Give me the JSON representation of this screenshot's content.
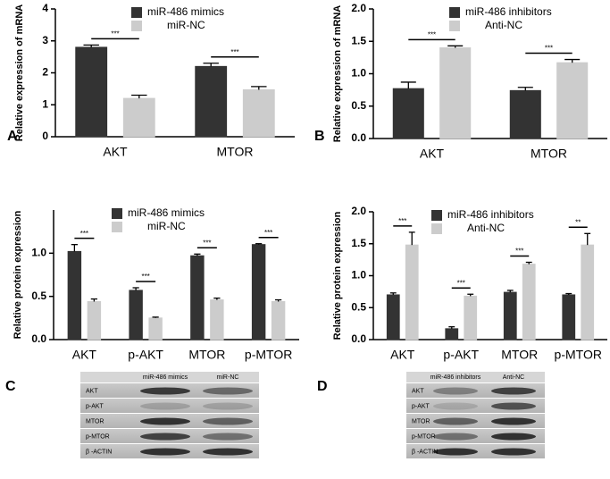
{
  "chart_data": [
    {
      "type": "bar",
      "panel_label": "A",
      "y_label": "Relative expression of mRNA",
      "categories": [
        "AKT",
        "MTOR"
      ],
      "series": [
        {
          "name": "miR-486 mimics",
          "color": "#333333",
          "values": [
            2.8,
            2.2
          ],
          "errors": [
            0.07,
            0.1
          ]
        },
        {
          "name": "miR-NC",
          "color": "#cccccc",
          "values": [
            1.2,
            1.47
          ],
          "errors": [
            0.1,
            0.1
          ]
        }
      ],
      "annotations": [
        "***",
        "***"
      ],
      "ylim": [
        0,
        4
      ],
      "yticks": [
        0,
        1,
        2,
        3,
        4
      ]
    },
    {
      "type": "bar",
      "panel_label": "B",
      "y_label": "Relative expression of mRNA",
      "categories": [
        "AKT",
        "MTOR"
      ],
      "series": [
        {
          "name": "miR-486 inhibitors",
          "color": "#333333",
          "values": [
            0.77,
            0.74
          ],
          "errors": [
            0.1,
            0.05
          ]
        },
        {
          "name": "Anti-NC",
          "color": "#cccccc",
          "values": [
            1.4,
            1.17
          ],
          "errors": [
            0.03,
            0.05
          ]
        }
      ],
      "annotations": [
        "***",
        "***"
      ],
      "ylim": [
        0,
        2
      ],
      "yticks": [
        {
          "value": 0,
          "label": "0.0"
        },
        0.5,
        {
          "value": 1,
          "label": "1.0"
        },
        1.5,
        {
          "value": 2,
          "label": "2.0"
        }
      ]
    },
    {
      "type": "bar",
      "y_label": "Relative protein expression",
      "categories": [
        "AKT",
        "p-AKT",
        "MTOR",
        "p-MTOR"
      ],
      "series": [
        {
          "name": "miR-486 mimics",
          "color": "#333333",
          "values": [
            1.02,
            0.57,
            0.97,
            1.1
          ],
          "errors": [
            0.08,
            0.03,
            0.02,
            0.01
          ]
        },
        {
          "name": "miR-NC",
          "color": "#cccccc",
          "values": [
            0.44,
            0.25,
            0.46,
            0.44
          ],
          "errors": [
            0.03,
            0.01,
            0.02,
            0.02
          ]
        }
      ],
      "annotations": [
        "***",
        "***",
        "***",
        "***"
      ],
      "ylim": [
        0,
        1.5
      ],
      "yticks": [
        {
          "value": 0,
          "label": "0.0"
        },
        0.5,
        {
          "value": 1,
          "label": "1.0"
        }
      ]
    },
    {
      "type": "bar",
      "y_label": "Relative protein expression",
      "categories": [
        "AKT",
        "p-AKT",
        "MTOR",
        "p-MTOR"
      ],
      "series": [
        {
          "name": "miR-486 inhibitors",
          "color": "#333333",
          "values": [
            0.7,
            0.17,
            0.74,
            0.7
          ],
          "errors": [
            0.03,
            0.03,
            0.03,
            0.02
          ]
        },
        {
          "name": "Anti-NC",
          "color": "#cccccc",
          "values": [
            1.48,
            0.68,
            1.18,
            1.48
          ],
          "errors": [
            0.2,
            0.03,
            0.03,
            0.18
          ]
        }
      ],
      "annotations": [
        "***",
        "***",
        "***",
        "**"
      ],
      "ylim": [
        0,
        2
      ],
      "yticks": [
        {
          "value": 0,
          "label": "0.0"
        },
        0.5,
        {
          "value": 1,
          "label": "1.0"
        },
        1.5,
        {
          "value": 2,
          "label": "2.0"
        }
      ]
    }
  ],
  "blots": [
    {
      "panel_label": "C",
      "lanes": [
        "miR-486 mimics",
        "miR-NC"
      ],
      "rows": [
        "AKT",
        "p-AKT",
        "MTOR",
        "p-MTOR",
        "β -ACTIN"
      ]
    },
    {
      "panel_label": "D",
      "lanes": [
        "miR-486 inhibitors",
        "Anti-NC"
      ],
      "rows": [
        "AKT",
        "p-AKT",
        "MTOR",
        "p-MTOR",
        "β -ACTIN"
      ]
    }
  ]
}
